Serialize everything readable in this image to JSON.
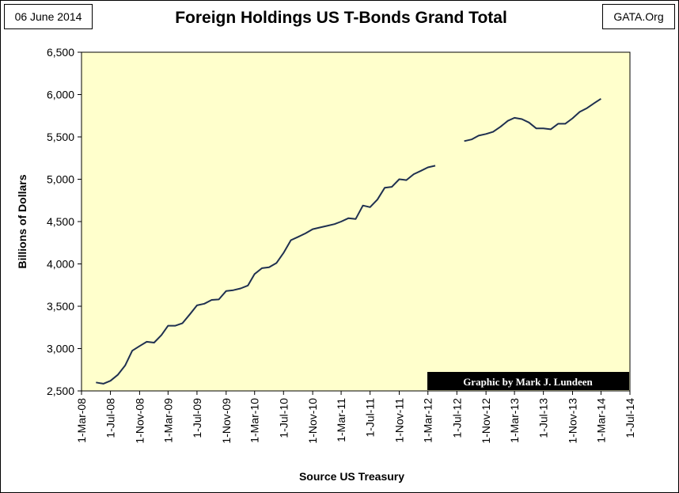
{
  "header": {
    "date": "06 June 2014",
    "source": "GATA.Org"
  },
  "chart_data": {
    "type": "line",
    "title": "Foreign Holdings US T-Bonds Grand Total",
    "xlabel": "Source US Treasury",
    "ylabel": "Billions of Dollars",
    "ylim": [
      2500,
      6500
    ],
    "yticks": [
      "2,500",
      "3,000",
      "3,500",
      "4,000",
      "4,500",
      "5,000",
      "5,500",
      "6,000",
      "6,500"
    ],
    "ytick_values": [
      2500,
      3000,
      3500,
      4000,
      4500,
      5000,
      5500,
      6000,
      6500
    ],
    "xlim": [
      "2008-03-01",
      "2014-07-01"
    ],
    "xticks": [
      "1-Mar-08",
      "1-Jul-08",
      "1-Nov-08",
      "1-Mar-09",
      "1-Jul-09",
      "1-Nov-09",
      "1-Mar-10",
      "1-Jul-10",
      "1-Nov-10",
      "1-Mar-11",
      "1-Jul-11",
      "1-Nov-11",
      "1-Mar-12",
      "1-Jul-12",
      "1-Nov-12",
      "1-Mar-13",
      "1-Jul-13",
      "1-Nov-13",
      "1-Mar-14",
      "1-Jul-14"
    ],
    "grid": false,
    "background_color": "#FFFFCC",
    "line_color": "#1F3050",
    "credit": "Graphic by Mark J. Lundeen",
    "series": [
      {
        "segments": [
          [
            [
              "2008-05-01",
              2600
            ],
            [
              "2008-06-01",
              2585
            ],
            [
              "2008-07-01",
              2620
            ],
            [
              "2008-08-01",
              2690
            ],
            [
              "2008-09-01",
              2800
            ],
            [
              "2008-10-01",
              2975
            ],
            [
              "2008-11-01",
              3030
            ],
            [
              "2008-12-01",
              3080
            ],
            [
              "2009-01-01",
              3070
            ],
            [
              "2009-02-01",
              3160
            ],
            [
              "2009-03-01",
              3270
            ],
            [
              "2009-04-01",
              3270
            ],
            [
              "2009-05-01",
              3300
            ],
            [
              "2009-06-01",
              3405
            ],
            [
              "2009-07-01",
              3510
            ],
            [
              "2009-08-01",
              3530
            ],
            [
              "2009-09-01",
              3575
            ],
            [
              "2009-10-01",
              3580
            ],
            [
              "2009-11-01",
              3680
            ],
            [
              "2009-12-01",
              3690
            ],
            [
              "2010-01-01",
              3710
            ],
            [
              "2010-02-01",
              3745
            ],
            [
              "2010-03-01",
              3880
            ],
            [
              "2010-04-01",
              3950
            ],
            [
              "2010-05-01",
              3960
            ],
            [
              "2010-06-01",
              4010
            ],
            [
              "2010-07-01",
              4130
            ],
            [
              "2010-08-01",
              4280
            ],
            [
              "2010-09-01",
              4320
            ],
            [
              "2010-10-01",
              4360
            ],
            [
              "2010-11-01",
              4410
            ],
            [
              "2010-12-01",
              4430
            ],
            [
              "2011-01-01",
              4450
            ],
            [
              "2011-02-01",
              4470
            ],
            [
              "2011-03-01",
              4500
            ],
            [
              "2011-04-01",
              4540
            ],
            [
              "2011-05-01",
              4530
            ],
            [
              "2011-06-01",
              4690
            ],
            [
              "2011-07-01",
              4670
            ],
            [
              "2011-08-01",
              4760
            ],
            [
              "2011-09-01",
              4900
            ],
            [
              "2011-10-01",
              4910
            ],
            [
              "2011-11-01",
              5000
            ],
            [
              "2011-12-01",
              4990
            ],
            [
              "2012-01-01",
              5060
            ],
            [
              "2012-02-01",
              5100
            ],
            [
              "2012-03-01",
              5140
            ],
            [
              "2012-04-01",
              5160
            ]
          ],
          [
            [
              "2012-08-01",
              5450
            ],
            [
              "2012-09-01",
              5470
            ],
            [
              "2012-10-01",
              5515
            ],
            [
              "2012-11-01",
              5535
            ],
            [
              "2012-12-01",
              5560
            ],
            [
              "2013-01-01",
              5620
            ],
            [
              "2013-02-01",
              5690
            ],
            [
              "2013-03-01",
              5725
            ],
            [
              "2013-04-01",
              5710
            ],
            [
              "2013-05-01",
              5670
            ],
            [
              "2013-06-01",
              5600
            ],
            [
              "2013-07-01",
              5600
            ],
            [
              "2013-08-01",
              5590
            ],
            [
              "2013-09-01",
              5655
            ],
            [
              "2013-10-01",
              5655
            ],
            [
              "2013-11-01",
              5720
            ],
            [
              "2013-12-01",
              5795
            ],
            [
              "2014-01-01",
              5840
            ],
            [
              "2014-02-01",
              5900
            ],
            [
              "2014-03-01",
              5950
            ]
          ]
        ]
      }
    ]
  }
}
